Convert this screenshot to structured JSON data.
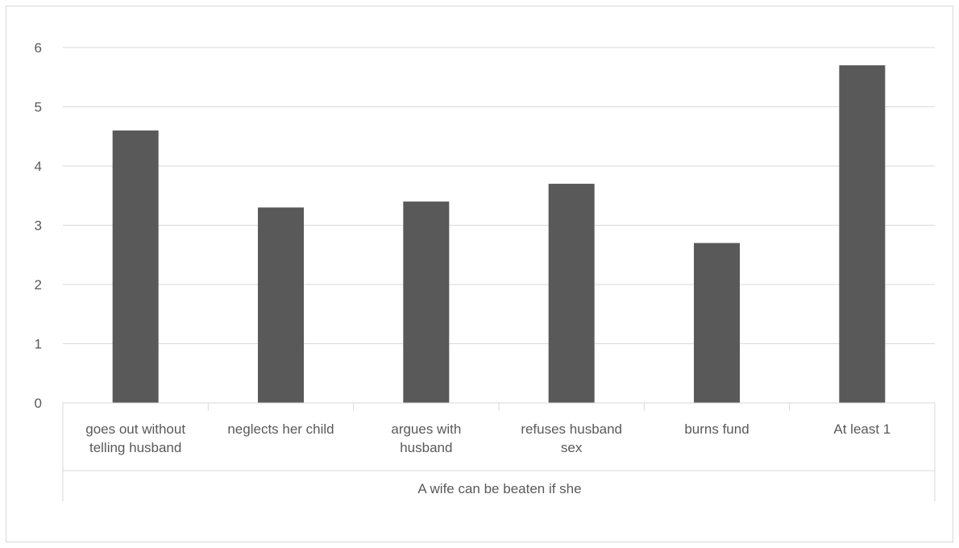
{
  "chart_data": {
    "type": "bar",
    "categories": [
      [
        "goes out without",
        "telling husband"
      ],
      [
        "neglects her child"
      ],
      [
        "argues with",
        "husband"
      ],
      [
        "refuses husband",
        "sex"
      ],
      [
        "burns fund"
      ],
      [
        "At least 1"
      ]
    ],
    "values": [
      4.6,
      3.3,
      3.4,
      3.7,
      2.7,
      5.7
    ],
    "title": "",
    "xlabel": "A wife can be beaten if she",
    "ylabel": "",
    "ylim": [
      0,
      6
    ],
    "yticks": [
      0,
      1,
      2,
      3,
      4,
      5,
      6
    ],
    "grid": true,
    "legend": "none",
    "colors": {
      "bar": "#595959",
      "grid": "#d9d9d9",
      "text": "#595959",
      "border": "#d9d9d9"
    }
  }
}
